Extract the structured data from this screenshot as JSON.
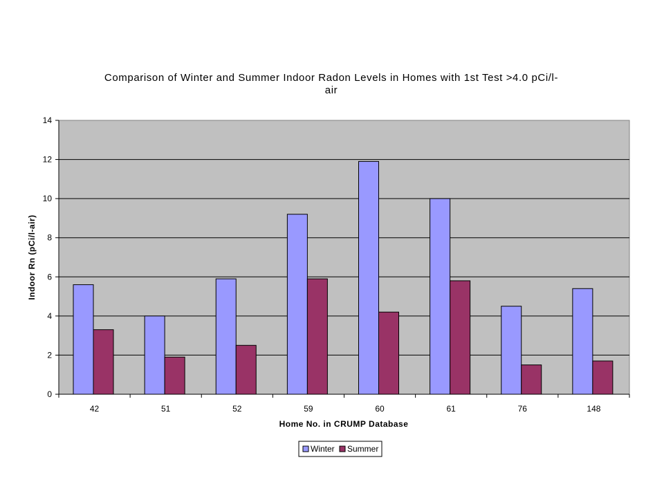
{
  "chart_data": {
    "type": "bar",
    "title_lines": [
      "Comparison of Winter and Summer Indoor Radon Levels in Homes with 1st Test >4.0 pCi/l-",
      "air"
    ],
    "xlabel": "Home No. in CRUMP Database",
    "ylabel": "Indoor Rn (pCi/l-air)",
    "categories": [
      "42",
      "51",
      "52",
      "59",
      "60",
      "61",
      "76",
      "148"
    ],
    "series": [
      {
        "name": "Winter",
        "color": "#9999ff",
        "values": [
          5.6,
          4.0,
          5.9,
          9.2,
          11.9,
          10.0,
          4.5,
          5.4
        ]
      },
      {
        "name": "Summer",
        "color": "#993366",
        "values": [
          3.3,
          1.9,
          2.5,
          5.9,
          4.2,
          5.8,
          1.5,
          1.7
        ]
      }
    ],
    "ylim": [
      0,
      14
    ],
    "yticks": [
      0,
      2,
      4,
      6,
      8,
      10,
      12,
      14
    ],
    "grid": true,
    "plot_background": "#c0c0c0",
    "legend_position": "bottom-center"
  }
}
